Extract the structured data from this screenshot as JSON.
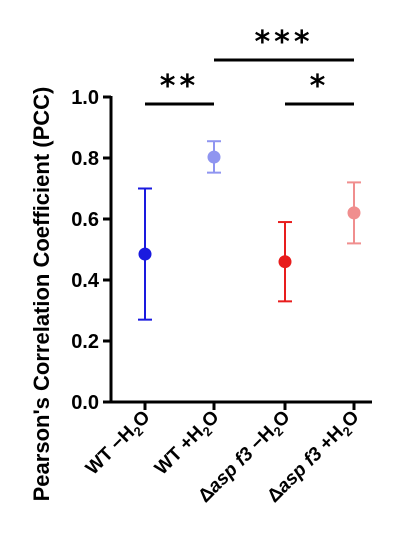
{
  "chart_data": {
    "type": "scatter",
    "ylabel": "Pearson's Correlation Coefficient (PCC)",
    "ylim": [
      0.0,
      1.0
    ],
    "yticks": [
      "0.0",
      "0.2",
      "0.4",
      "0.6",
      "0.8",
      "1.0"
    ],
    "categories": [
      {
        "label_pre": "WT −H",
        "label_mid": "O",
        "italic": ""
      },
      {
        "label_pre": "WT +H",
        "label_mid": "O",
        "italic": ""
      },
      {
        "label_pre": "Δ",
        "italic": "asp f3",
        "label_post": " −H",
        "label_mid": "O"
      },
      {
        "label_pre": "Δ",
        "italic": "asp f3",
        "label_post": " +H",
        "label_mid": "O"
      }
    ],
    "sub2": "2",
    "points": [
      {
        "value": 0.485,
        "err_low": 0.27,
        "err_high": 0.7,
        "color": "#1a1adf"
      },
      {
        "value": 0.803,
        "err_low": 0.752,
        "err_high": 0.855,
        "color": "#8f95f0"
      },
      {
        "value": 0.46,
        "err_low": 0.33,
        "err_high": 0.59,
        "color": "#e81d1d"
      },
      {
        "value": 0.62,
        "err_low": 0.52,
        "err_high": 0.72,
        "color": "#f08e8e"
      }
    ],
    "significance": [
      {
        "from": 0,
        "to": 1,
        "label": "**"
      },
      {
        "from": 1,
        "to": 3,
        "label": "***"
      },
      {
        "from": 2,
        "to": 3,
        "label": "*"
      }
    ]
  }
}
